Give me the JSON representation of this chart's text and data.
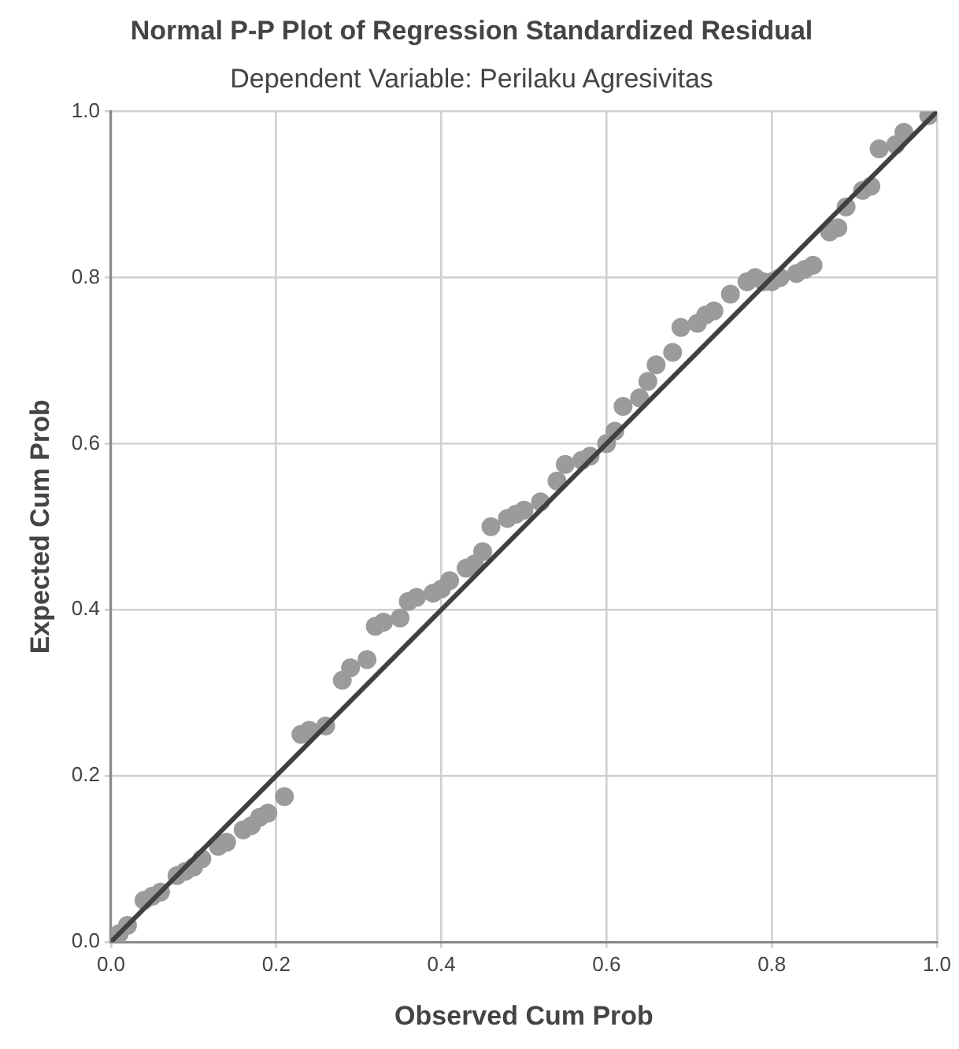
{
  "chart_data": {
    "type": "scatter",
    "title": "Normal P-P Plot of Regression Standardized Residual",
    "subtitle": "Dependent Variable: Perilaku Agresivitas",
    "xlabel": "Observed Cum Prob",
    "ylabel": "Expected Cum Prob",
    "xlim": [
      0,
      1
    ],
    "ylim": [
      0,
      1
    ],
    "xticks": [
      {
        "value": 0,
        "label": "0.0"
      },
      {
        "value": 0.2,
        "label": "0.2"
      },
      {
        "value": 0.4,
        "label": "0.4"
      },
      {
        "value": 0.6,
        "label": "0.6"
      },
      {
        "value": 0.8,
        "label": "0.8"
      },
      {
        "value": 1,
        "label": "1.0"
      }
    ],
    "yticks": [
      {
        "value": 0,
        "label": "0.0"
      },
      {
        "value": 0.2,
        "label": "0.2"
      },
      {
        "value": 0.4,
        "label": "0.4"
      },
      {
        "value": 0.6,
        "label": "0.6"
      },
      {
        "value": 0.8,
        "label": "0.8"
      },
      {
        "value": 1,
        "label": "1.0"
      }
    ],
    "grid": true,
    "legend": false,
    "marker": "circle",
    "series": [
      {
        "color": "#9b9b9b",
        "x": [
          0.01,
          0.02,
          0.04,
          0.05,
          0.06,
          0.08,
          0.09,
          0.1,
          0.11,
          0.13,
          0.14,
          0.16,
          0.17,
          0.18,
          0.19,
          0.21,
          0.23,
          0.24,
          0.26,
          0.28,
          0.29,
          0.31,
          0.32,
          0.33,
          0.35,
          0.36,
          0.37,
          0.39,
          0.4,
          0.41,
          0.43,
          0.44,
          0.45,
          0.46,
          0.48,
          0.49,
          0.5,
          0.52,
          0.54,
          0.55,
          0.57,
          0.58,
          0.6,
          0.61,
          0.62,
          0.64,
          0.65,
          0.66,
          0.68,
          0.69,
          0.71,
          0.72,
          0.73,
          0.75,
          0.77,
          0.78,
          0.79,
          0.8,
          0.81,
          0.83,
          0.84,
          0.85,
          0.87,
          0.88,
          0.89,
          0.91,
          0.92,
          0.93,
          0.95,
          0.96,
          0.99
        ],
        "values": [
          0.01,
          0.02,
          0.05,
          0.055,
          0.06,
          0.08,
          0.085,
          0.09,
          0.1,
          0.115,
          0.12,
          0.135,
          0.14,
          0.15,
          0.155,
          0.175,
          0.25,
          0.255,
          0.26,
          0.315,
          0.33,
          0.34,
          0.38,
          0.385,
          0.39,
          0.41,
          0.415,
          0.42,
          0.425,
          0.435,
          0.45,
          0.455,
          0.47,
          0.5,
          0.51,
          0.515,
          0.52,
          0.53,
          0.555,
          0.575,
          0.58,
          0.585,
          0.6,
          0.615,
          0.645,
          0.655,
          0.675,
          0.695,
          0.71,
          0.74,
          0.745,
          0.755,
          0.76,
          0.78,
          0.795,
          0.8,
          0.795,
          0.795,
          0.8,
          0.805,
          0.81,
          0.815,
          0.855,
          0.86,
          0.885,
          0.905,
          0.91,
          0.955,
          0.96,
          0.975,
          0.995
        ]
      },
      {
        "type": "line",
        "color": "#404040",
        "x": [
          0,
          1
        ],
        "values": [
          0,
          1
        ],
        "line_style": "solid",
        "marker": "none"
      }
    ]
  }
}
